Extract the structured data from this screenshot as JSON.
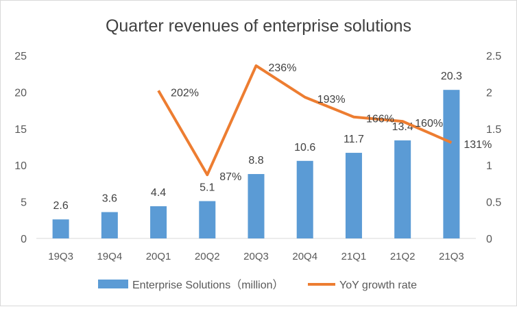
{
  "chart_data": {
    "type": "bar+line",
    "title": "Quarter revenues of enterprise solutions",
    "categories": [
      "19Q3",
      "19Q4",
      "20Q1",
      "20Q2",
      "20Q3",
      "20Q4",
      "21Q1",
      "21Q2",
      "21Q3"
    ],
    "series": [
      {
        "name": "Enterprise Solutions（million）",
        "type": "bar",
        "axis": "left",
        "values": [
          2.6,
          3.6,
          4.4,
          5.1,
          8.8,
          10.6,
          11.7,
          13.4,
          20.3
        ],
        "labels": [
          "2.6",
          "3.6",
          "4.4",
          "5.1",
          "8.8",
          "10.6",
          "11.7",
          "13.4",
          "20.3"
        ],
        "color": "#5b9bd5"
      },
      {
        "name": "YoY growth rate",
        "type": "line",
        "axis": "right",
        "values": [
          null,
          null,
          2.02,
          0.87,
          2.36,
          1.93,
          1.66,
          1.6,
          1.31
        ],
        "labels": [
          "",
          "",
          "202%",
          "87%",
          "236%",
          "193%",
          "166%",
          "160%",
          "131%"
        ],
        "color": "#ed7d31"
      }
    ],
    "y_left": {
      "min": 0,
      "max": 25,
      "ticks": [
        "0",
        "5",
        "10",
        "15",
        "20",
        "25"
      ]
    },
    "y_right": {
      "min": 0,
      "max": 2.5,
      "ticks": [
        "0",
        "0.5",
        "1",
        "1.5",
        "2",
        "2.5"
      ]
    },
    "grid": false,
    "legend": "bottom"
  }
}
